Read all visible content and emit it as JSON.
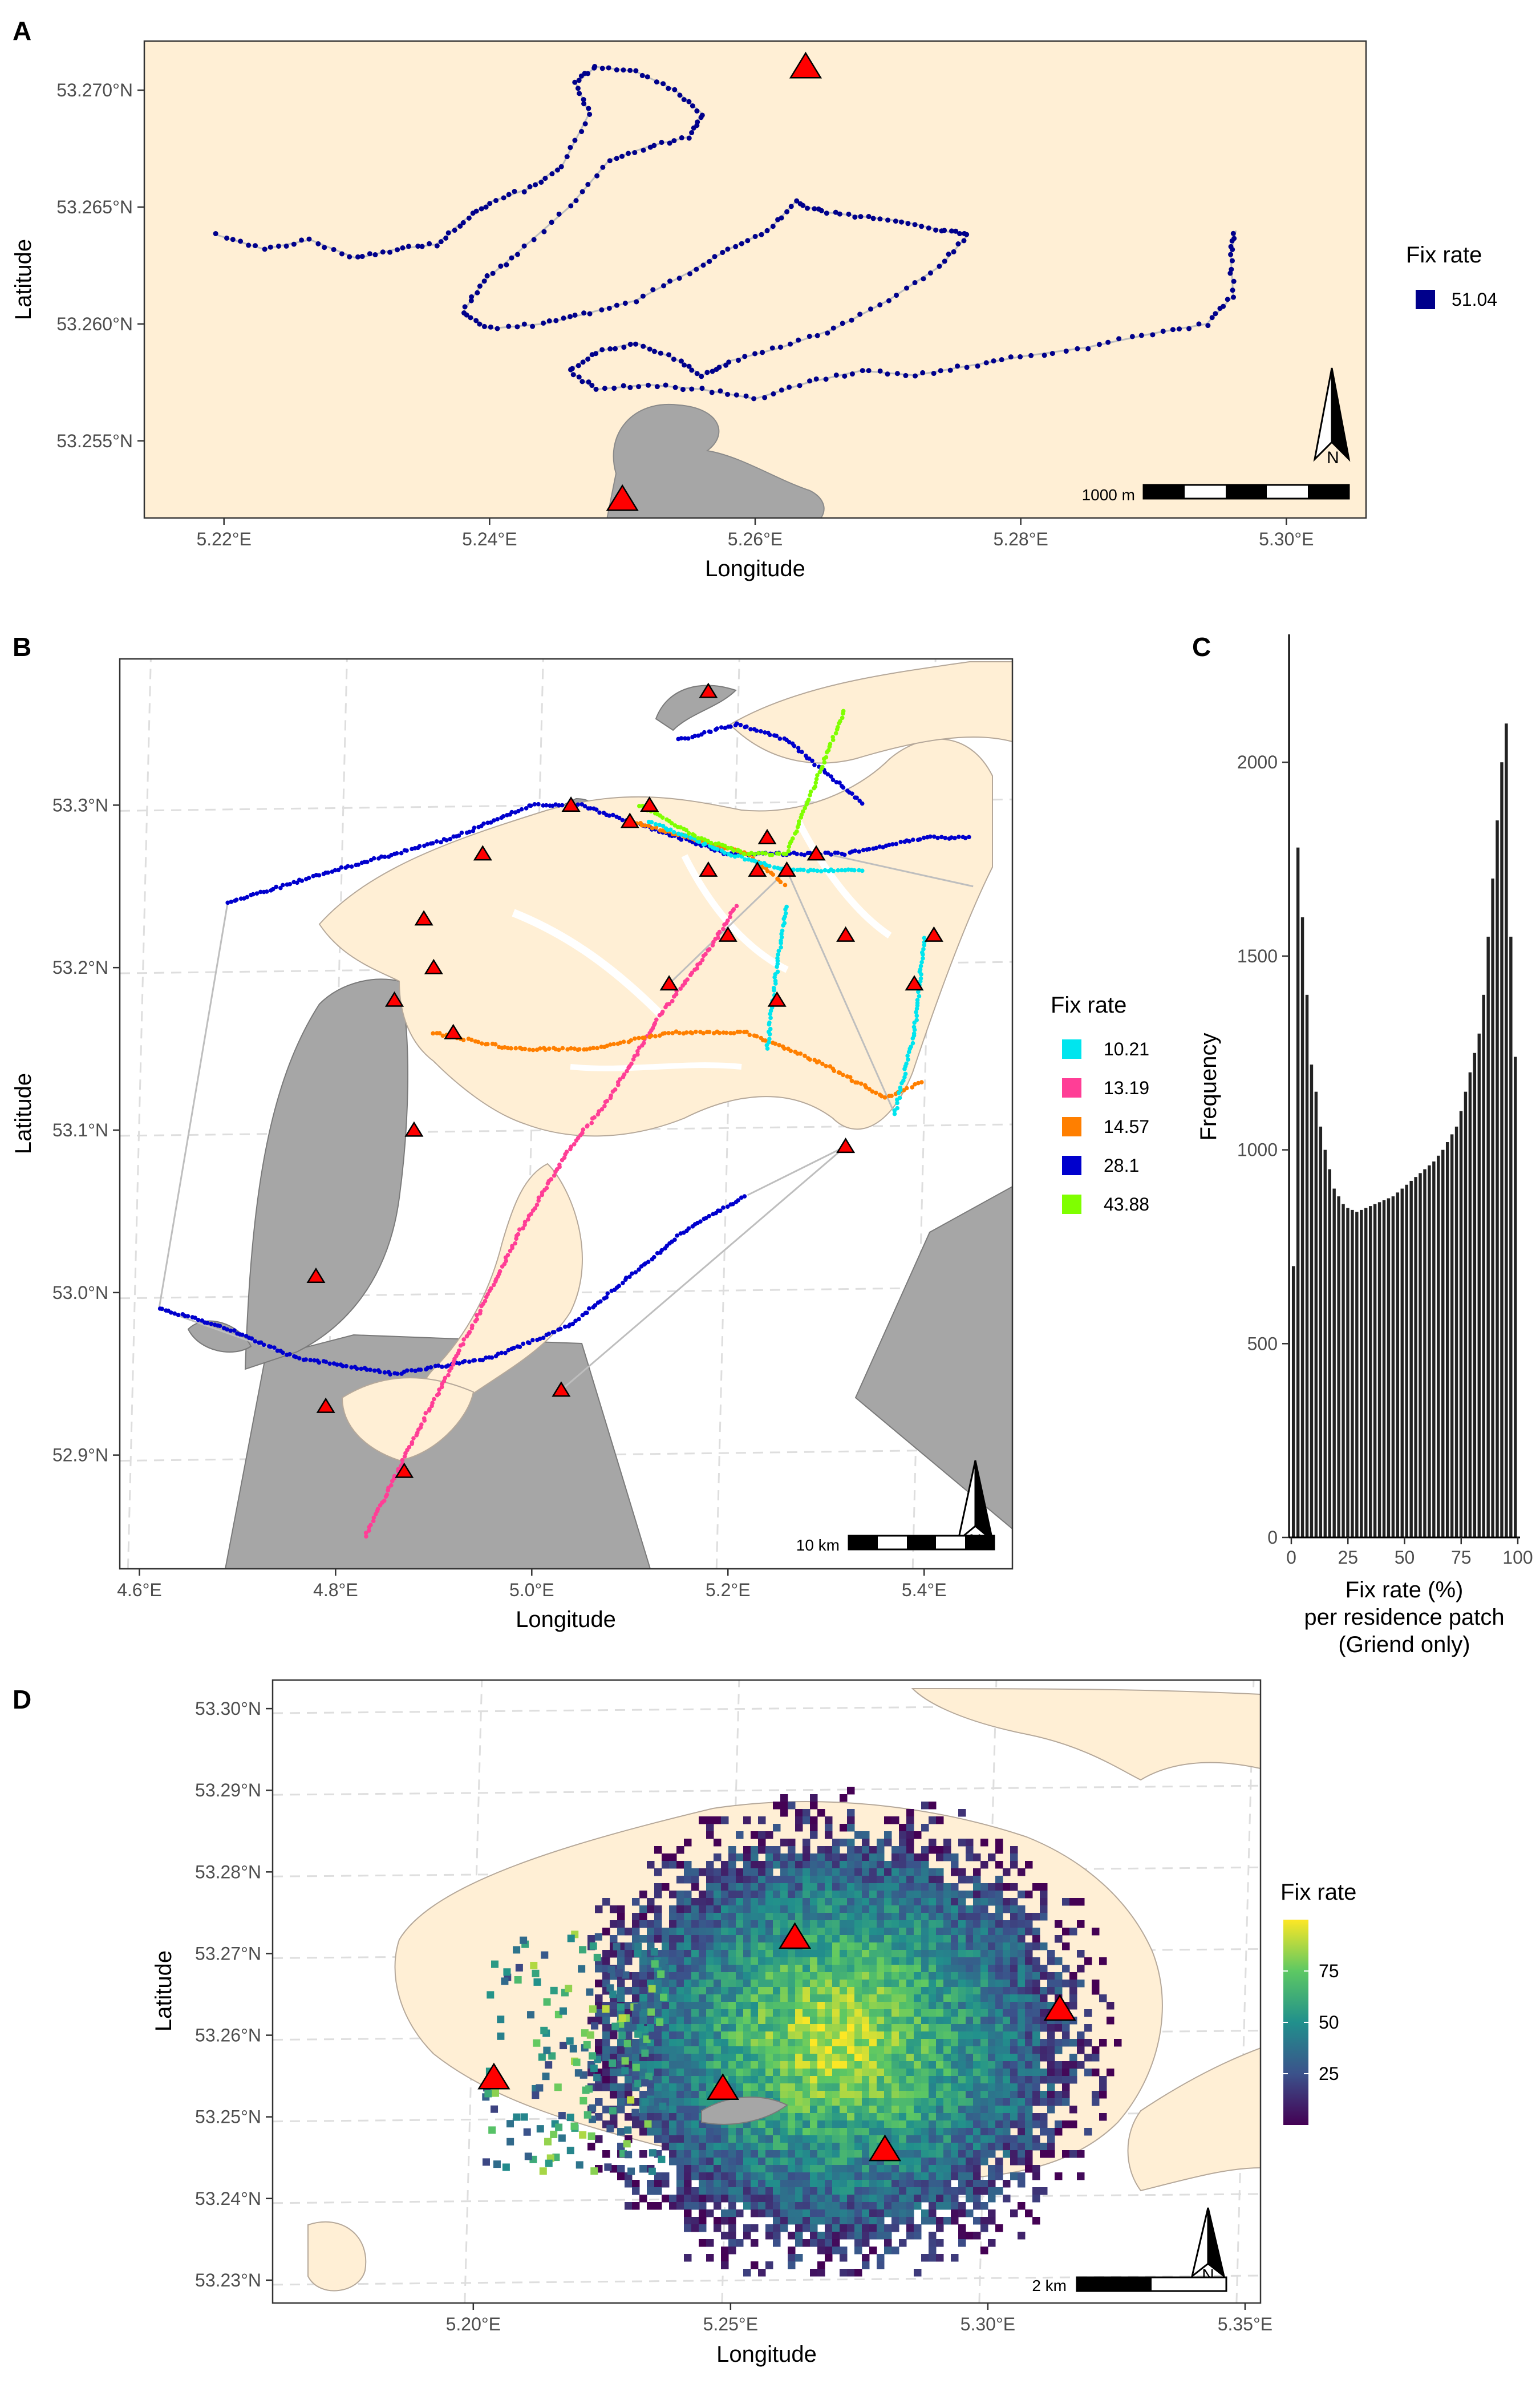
{
  "chart_data": [
    {
      "panel": "A",
      "type": "scatter",
      "xlabel": "Longitude",
      "ylabel": "Latitude",
      "xlim": [
        5.214,
        5.306
      ],
      "ylim": [
        5.2517,
        5.2721
      ],
      "x_ticks": [
        5.22,
        5.24,
        5.26,
        5.28,
        5.3
      ],
      "x_tick_labels": [
        "5.22°E",
        "5.24°E",
        "5.26°E",
        "5.28°E",
        "5.30°E"
      ],
      "y_ticks": [
        53.255,
        53.26,
        53.265,
        53.27
      ],
      "y_tick_labels": [
        "53.255°N",
        "53.260°N",
        "53.265°N",
        "53.270°N"
      ],
      "legend": {
        "title": "Fix rate",
        "entries": [
          {
            "label": "51.04",
            "color": "#00008B"
          }
        ]
      },
      "scale_bar": "1000 m",
      "north_arrow": "N",
      "receivers": [
        {
          "lon": 5.2638,
          "lat": 53.271
        },
        {
          "lon": 5.25,
          "lat": 53.2525
        }
      ],
      "track": [
        [
          5.2195,
          53.2638
        ],
        [
          5.223,
          53.2632
        ],
        [
          5.2265,
          53.2636
        ],
        [
          5.23,
          53.2628
        ],
        [
          5.233,
          53.2632
        ],
        [
          5.236,
          53.2634
        ],
        [
          5.238,
          53.2644
        ],
        [
          5.24,
          53.2652
        ],
        [
          5.243,
          53.2658
        ],
        [
          5.2455,
          53.2668
        ],
        [
          5.2475,
          53.269
        ],
        [
          5.2465,
          53.2703
        ],
        [
          5.248,
          53.271
        ],
        [
          5.251,
          53.2708
        ],
        [
          5.254,
          53.27
        ],
        [
          5.256,
          53.269
        ],
        [
          5.255,
          53.268
        ],
        [
          5.252,
          53.2676
        ],
        [
          5.249,
          53.267
        ],
        [
          5.246,
          53.265
        ],
        [
          5.242,
          53.263
        ],
        [
          5.2395,
          53.2618
        ],
        [
          5.238,
          53.2605
        ],
        [
          5.24,
          53.2598
        ],
        [
          5.244,
          53.26
        ],
        [
          5.247,
          53.2604
        ],
        [
          5.251,
          53.261
        ],
        [
          5.255,
          53.2622
        ],
        [
          5.258,
          53.2632
        ],
        [
          5.261,
          53.264
        ],
        [
          5.263,
          53.2652
        ],
        [
          5.265,
          53.2648
        ],
        [
          5.268,
          53.2646
        ],
        [
          5.271,
          53.2644
        ],
        [
          5.274,
          53.264
        ],
        [
          5.276,
          53.2638
        ],
        [
          5.274,
          53.2625
        ],
        [
          5.27,
          53.261
        ],
        [
          5.266,
          53.2598
        ],
        [
          5.262,
          53.259
        ],
        [
          5.258,
          53.2584
        ],
        [
          5.256,
          53.2578
        ],
        [
          5.254,
          53.2585
        ],
        [
          5.251,
          53.2592
        ],
        [
          5.248,
          53.2588
        ],
        [
          5.246,
          53.258
        ],
        [
          5.248,
          53.2572
        ],
        [
          5.252,
          53.2574
        ],
        [
          5.256,
          53.2572
        ],
        [
          5.26,
          53.2568
        ],
        [
          5.264,
          53.2575
        ],
        [
          5.268,
          53.258
        ],
        [
          5.272,
          53.2578
        ],
        [
          5.276,
          53.2582
        ],
        [
          5.28,
          53.2586
        ],
        [
          5.285,
          53.259
        ],
        [
          5.29,
          53.2596
        ],
        [
          5.294,
          53.26
        ],
        [
          5.296,
          53.2612
        ],
        [
          5.2958,
          53.263
        ],
        [
          5.2962,
          53.264
        ]
      ]
    },
    {
      "panel": "B",
      "type": "scatter",
      "xlabel": "Longitude",
      "ylabel": "Latitude",
      "xlim": [
        4.58,
        5.49
      ],
      "ylim": [
        52.83,
        53.39
      ],
      "x_ticks": [
        4.6,
        4.8,
        5.0,
        5.2,
        5.4
      ],
      "x_tick_labels": [
        "4.6°E",
        "4.8°E",
        "5.0°E",
        "5.2°E",
        "5.4°E"
      ],
      "y_ticks": [
        52.9,
        53.0,
        53.1,
        53.2,
        53.3
      ],
      "y_tick_labels": [
        "52.9°N",
        "53.0°N",
        "53.1°N",
        "53.2°N",
        "53.3°N"
      ],
      "legend": {
        "title": "Fix rate",
        "entries": [
          {
            "label": "10.21",
            "color": "#00E5EE"
          },
          {
            "label": "13.19",
            "color": "#FF3E96"
          },
          {
            "label": "14.57",
            "color": "#FF7F00"
          },
          {
            "label": "28.1",
            "color": "#0000CD"
          },
          {
            "label": "43.88",
            "color": "#7FFF00"
          }
        ]
      },
      "scale_bar": "10 km",
      "north_arrow": "N",
      "receivers": [
        [
          5.18,
          53.37
        ],
        [
          5.04,
          53.3
        ],
        [
          4.95,
          53.27
        ],
        [
          4.89,
          53.23
        ],
        [
          4.86,
          53.18
        ],
        [
          4.92,
          53.16
        ],
        [
          4.9,
          53.2
        ],
        [
          4.88,
          53.1
        ],
        [
          4.78,
          53.01
        ],
        [
          4.79,
          52.93
        ],
        [
          4.87,
          52.89
        ],
        [
          5.03,
          52.94
        ],
        [
          5.1,
          53.29
        ],
        [
          5.12,
          53.3
        ],
        [
          5.18,
          53.26
        ],
        [
          5.24,
          53.28
        ],
        [
          5.29,
          53.27
        ],
        [
          5.23,
          53.26
        ],
        [
          5.26,
          53.26
        ],
        [
          5.2,
          53.22
        ],
        [
          5.14,
          53.19
        ],
        [
          5.25,
          53.18
        ],
        [
          5.32,
          53.22
        ],
        [
          5.39,
          53.19
        ],
        [
          5.41,
          53.22
        ],
        [
          5.32,
          53.09
        ]
      ],
      "tracks": [
        {
          "fix_rate": "28.1",
          "points": [
            [
              4.69,
              53.24
            ],
            [
              4.8,
              53.26
            ],
            [
              4.92,
              53.28
            ],
            [
              5.0,
              53.3
            ],
            [
              5.05,
              53.3
            ],
            [
              5.1,
              53.29
            ],
            [
              5.15,
              53.28
            ],
            [
              5.2,
              53.27
            ],
            [
              5.26,
              53.27
            ],
            [
              5.32,
              53.27
            ],
            [
              5.4,
              53.28
            ],
            [
              5.45,
              53.28
            ]
          ]
        },
        {
          "fix_rate": "28.1",
          "points": [
            [
              5.15,
              53.34
            ],
            [
              5.21,
              53.35
            ],
            [
              5.26,
              53.34
            ],
            [
              5.3,
              53.32
            ],
            [
              5.34,
              53.3
            ]
          ]
        },
        {
          "fix_rate": "28.1",
          "points": [
            [
              4.62,
              52.99
            ],
            [
              4.68,
              52.98
            ],
            [
              4.76,
              52.96
            ],
            [
              4.86,
              52.95
            ],
            [
              4.96,
              52.96
            ],
            [
              5.04,
              52.98
            ],
            [
              5.1,
              53.01
            ],
            [
              5.16,
              53.04
            ],
            [
              5.22,
              53.06
            ]
          ]
        },
        {
          "fix_rate": "13.19",
          "points": [
            [
              4.83,
              52.85
            ],
            [
              4.88,
              52.91
            ],
            [
              4.94,
              52.98
            ],
            [
              4.99,
              53.04
            ],
            [
              5.04,
              53.09
            ],
            [
              5.08,
              53.12
            ],
            [
              5.13,
              53.17
            ],
            [
              5.18,
              53.21
            ],
            [
              5.21,
              53.24
            ]
          ]
        },
        {
          "fix_rate": "14.57",
          "points": [
            [
              4.9,
              53.16
            ],
            [
              4.98,
              53.15
            ],
            [
              5.06,
              53.15
            ],
            [
              5.14,
              53.16
            ],
            [
              5.22,
              53.16
            ],
            [
              5.3,
              53.14
            ],
            [
              5.36,
              53.12
            ],
            [
              5.4,
              53.13
            ]
          ]
        },
        {
          "fix_rate": "14.57",
          "points": [
            [
              5.1,
              53.29
            ],
            [
              5.16,
              53.28
            ],
            [
              5.22,
              53.27
            ],
            [
              5.26,
              53.25
            ]
          ]
        },
        {
          "fix_rate": "10.21",
          "points": [
            [
              5.12,
              53.29
            ],
            [
              5.2,
              53.27
            ],
            [
              5.26,
              53.26
            ],
            [
              5.34,
              53.26
            ]
          ]
        },
        {
          "fix_rate": "10.21",
          "points": [
            [
              5.24,
              53.15
            ],
            [
              5.25,
              53.2
            ],
            [
              5.26,
              53.24
            ]
          ]
        },
        {
          "fix_rate": "10.21",
          "points": [
            [
              5.37,
              53.11
            ],
            [
              5.39,
              53.16
            ],
            [
              5.4,
              53.22
            ]
          ]
        },
        {
          "fix_rate": "43.88",
          "points": [
            [
              5.11,
              53.3
            ],
            [
              5.17,
              53.28
            ],
            [
              5.22,
              53.27
            ],
            [
              5.26,
              53.27
            ],
            [
              5.28,
              53.3
            ],
            [
              5.3,
              53.33
            ],
            [
              5.32,
              53.36
            ]
          ]
        }
      ]
    },
    {
      "panel": "C",
      "type": "bar",
      "xlabel": "Fix rate (%)",
      "xlabel_lines": [
        "Fix rate (%)",
        "per residence patch",
        "(Griend only)"
      ],
      "ylabel": "Frequency",
      "xlim": [
        -1,
        101
      ],
      "ylim": [
        0,
        2330
      ],
      "x_ticks": [
        0,
        25,
        50,
        75,
        100
      ],
      "y_ticks": [
        0,
        500,
        1000,
        1500,
        2000
      ],
      "bin_width": 2,
      "bin_starts": [
        0,
        2,
        4,
        6,
        8,
        10,
        12,
        14,
        16,
        18,
        20,
        22,
        24,
        26,
        28,
        30,
        32,
        34,
        36,
        38,
        40,
        42,
        44,
        46,
        48,
        50,
        52,
        54,
        56,
        58,
        60,
        62,
        64,
        66,
        68,
        70,
        72,
        74,
        76,
        78,
        80,
        82,
        84,
        86,
        88,
        90,
        92,
        94,
        96,
        98
      ],
      "values": [
        700,
        1780,
        1600,
        1400,
        1220,
        1150,
        1060,
        1000,
        950,
        900,
        880,
        860,
        850,
        845,
        840,
        845,
        850,
        855,
        860,
        865,
        870,
        875,
        880,
        890,
        900,
        910,
        920,
        930,
        940,
        950,
        960,
        970,
        985,
        1000,
        1020,
        1040,
        1060,
        1100,
        1150,
        1200,
        1250,
        1300,
        1400,
        1550,
        1700,
        1850,
        2000,
        2100,
        1550,
        1240
      ]
    },
    {
      "panel": "D",
      "type": "heatmap",
      "xlabel": "Longitude",
      "ylabel": "Latitude",
      "xlim": [
        5.161,
        5.353
      ],
      "ylim": [
        53.2272,
        53.3035
      ],
      "x_ticks": [
        5.2,
        5.25,
        5.3,
        5.35
      ],
      "x_tick_labels": [
        "5.20°E",
        "5.25°E",
        "5.30°E",
        "5.35°E"
      ],
      "y_ticks": [
        53.23,
        53.24,
        53.25,
        53.26,
        53.27,
        53.28,
        53.29,
        53.3
      ],
      "y_tick_labels": [
        "53.23°N",
        "53.24°N",
        "53.25°N",
        "53.26°N",
        "53.27°N",
        "53.28°N",
        "53.29°N",
        "53.30°N"
      ],
      "legend": {
        "title": "Fix rate",
        "ticks": [
          25,
          50,
          75
        ],
        "range": [
          0,
          100
        ]
      },
      "scale_bar": "2 km",
      "north_arrow": "N",
      "receivers": [
        [
          5.204,
          53.2548
        ],
        [
          5.2625,
          53.272
        ],
        [
          5.314,
          53.2632
        ],
        [
          5.2485,
          53.2535
        ],
        [
          5.28,
          53.246
        ]
      ],
      "hotspot_center": [
        5.27,
        53.26
      ],
      "colors": [
        "#440154",
        "#3B528B",
        "#21908C",
        "#5DC863",
        "#FDE725"
      ]
    }
  ]
}
